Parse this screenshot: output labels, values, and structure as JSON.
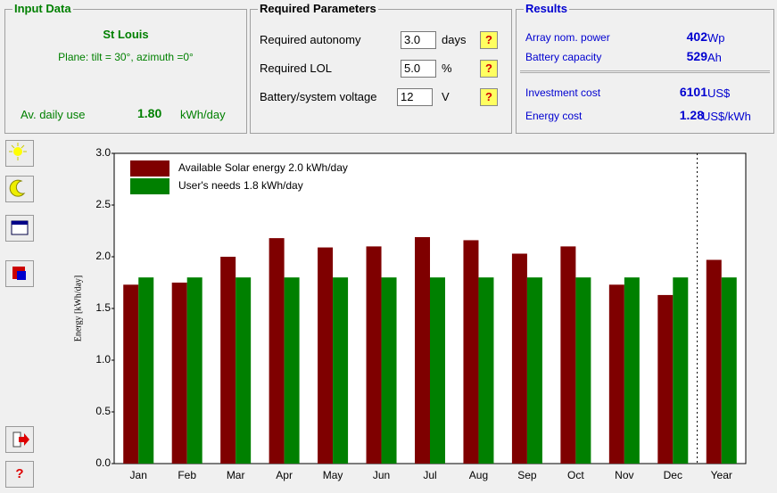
{
  "input_data": {
    "title": "Input Data",
    "location": "St Louis",
    "plane": "Plane: tilt = 30°, azimuth =0°",
    "daily_use_label": "Av. daily use",
    "daily_use_value": "1.80",
    "daily_use_unit": "kWh/day"
  },
  "required_parameters": {
    "title": "Required Parameters",
    "help": "?",
    "rows": [
      {
        "label": "Required autonomy",
        "value": "3.0",
        "unit": "days"
      },
      {
        "label": "Required LOL",
        "value": "5.0",
        "unit": "%"
      },
      {
        "label": "Battery/system voltage",
        "value": "12",
        "unit": "V"
      }
    ]
  },
  "results": {
    "title": "Results",
    "rows": [
      {
        "label": "Array nom. power",
        "value": "402",
        "unit": "Wp"
      },
      {
        "label": "Battery capacity",
        "value": "529",
        "unit": "Ah"
      },
      {
        "label": "Investment cost",
        "value": "6101",
        "unit": "US$"
      },
      {
        "label": "Energy cost",
        "value": "1.28",
        "unit": "US$/kWh"
      }
    ]
  },
  "toolbar": {
    "help": "?"
  },
  "chart_data": {
    "type": "bar",
    "ylabel": "Energy  [kWh/day]",
    "categories": [
      "Jan",
      "Feb",
      "Mar",
      "Apr",
      "May",
      "Jun",
      "Jul",
      "Aug",
      "Sep",
      "Oct",
      "Nov",
      "Dec",
      "Year"
    ],
    "series": [
      {
        "name": "Available Solar energy   2.0 kWh/day",
        "color": "#7f0000",
        "values": [
          1.73,
          1.75,
          2.0,
          2.18,
          2.09,
          2.1,
          2.19,
          2.16,
          2.03,
          2.1,
          1.73,
          1.63,
          1.97
        ]
      },
      {
        "name": "User's needs   1.8 kWh/day",
        "color": "#008000",
        "values": [
          1.8,
          1.8,
          1.8,
          1.8,
          1.8,
          1.8,
          1.8,
          1.8,
          1.8,
          1.8,
          1.8,
          1.8,
          1.8
        ]
      }
    ],
    "ylim": [
      0,
      3
    ],
    "yticks": [
      {
        "value": 0,
        "label": "0.0"
      },
      0.5,
      {
        "value": 1,
        "label": "1.0"
      },
      1.5,
      {
        "value": 2,
        "label": "2.0"
      },
      2.5,
      {
        "value": 3,
        "label": "3.0"
      }
    ],
    "legend": "upper left"
  }
}
